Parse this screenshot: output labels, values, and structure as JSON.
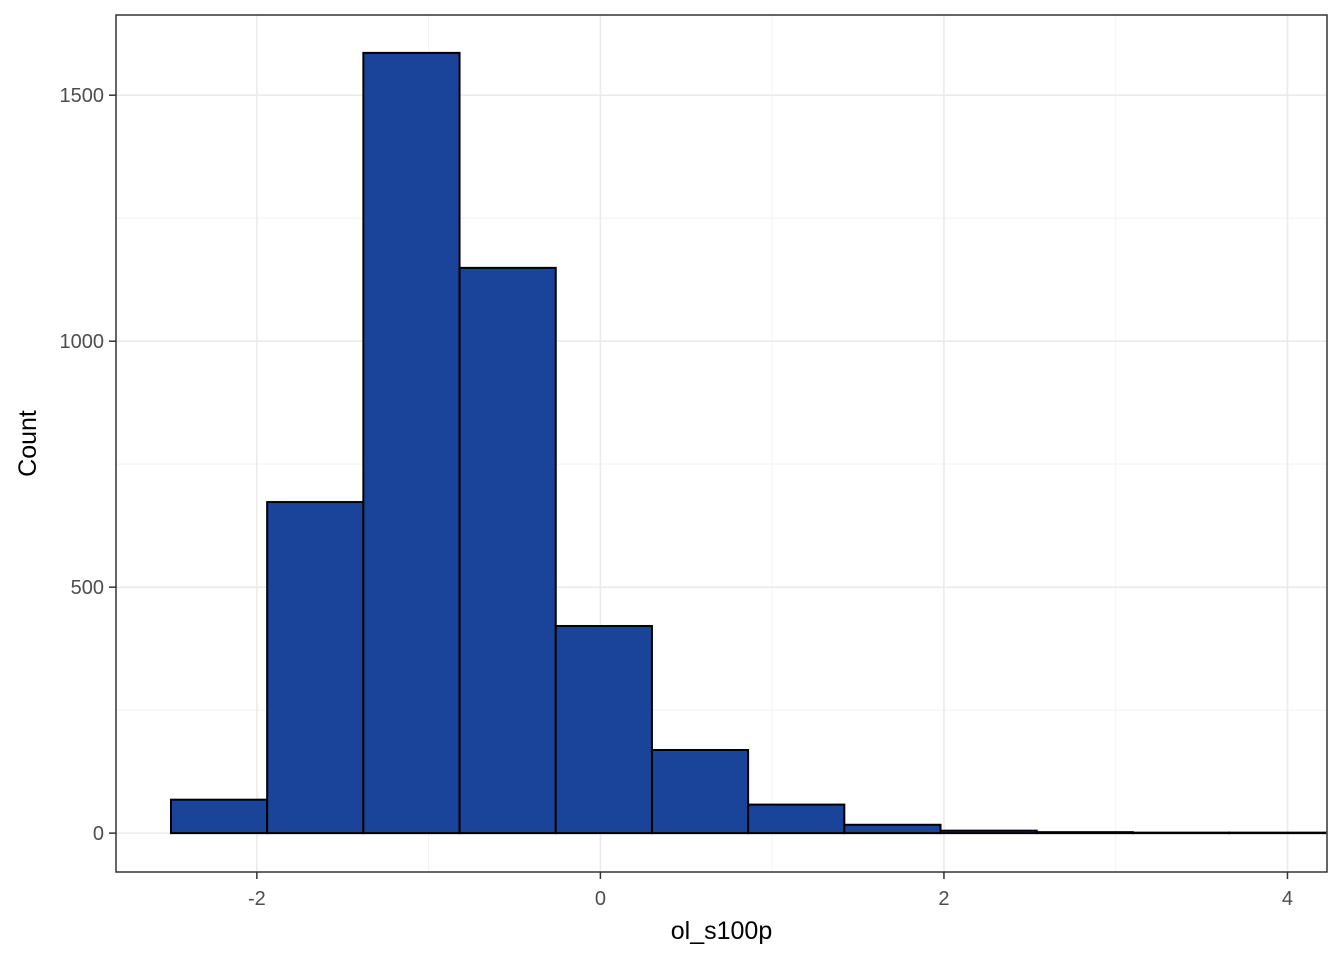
{
  "chart_data": {
    "type": "bar",
    "subtype": "histogram",
    "title": "",
    "xlabel": "ol_s100p",
    "ylabel": "Count",
    "xlim": [
      -2.82,
      4.23
    ],
    "ylim": [
      -79,
      1663
    ],
    "x_ticks": [
      -2,
      0,
      2,
      4
    ],
    "x_tick_labels": [
      "-2",
      "0",
      "2",
      "4"
    ],
    "y_ticks": [
      0,
      500,
      1000,
      1500
    ],
    "y_tick_labels": [
      "0",
      "500",
      "1000",
      "1500"
    ],
    "grid": true,
    "bins": [
      {
        "x0": -2.5,
        "x1": -1.94,
        "count": 68
      },
      {
        "x0": -1.94,
        "x1": -1.38,
        "count": 673
      },
      {
        "x0": -1.38,
        "x1": -0.82,
        "count": 1586
      },
      {
        "x0": -0.82,
        "x1": -0.26,
        "count": 1149
      },
      {
        "x0": -0.26,
        "x1": 0.3,
        "count": 421
      },
      {
        "x0": 0.3,
        "x1": 0.86,
        "count": 169
      },
      {
        "x0": 0.86,
        "x1": 1.42,
        "count": 58
      },
      {
        "x0": 1.42,
        "x1": 1.98,
        "count": 17
      },
      {
        "x0": 1.98,
        "x1": 2.54,
        "count": 5
      },
      {
        "x0": 2.54,
        "x1": 3.1,
        "count": 2
      },
      {
        "x0": 3.1,
        "x1": 3.66,
        "count": 1
      },
      {
        "x0": 3.66,
        "x1": 4.22,
        "count": 1
      }
    ],
    "bar_fill": "#1a449a",
    "bar_outline": "#000000"
  }
}
